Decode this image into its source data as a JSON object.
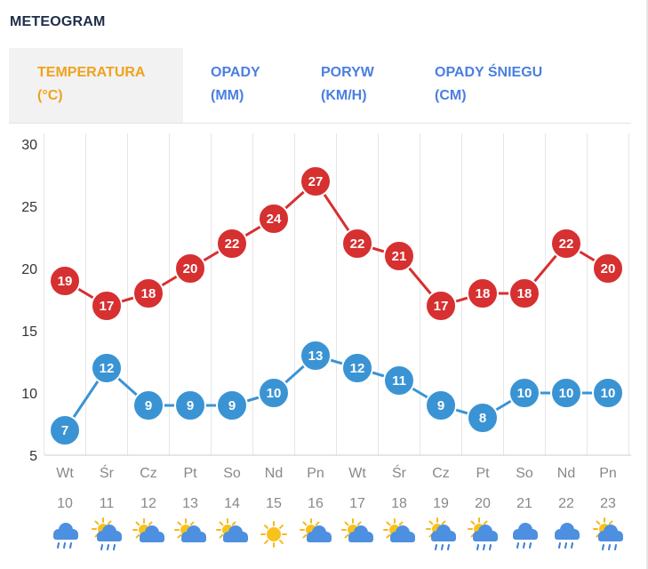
{
  "title": "METEOGRAM",
  "tabs": [
    {
      "line1": "TEMPERATURA",
      "line2": "(°C)",
      "active": true
    },
    {
      "line1": "OPADY",
      "line2": "(MM)",
      "active": false
    },
    {
      "line1": "PORYW",
      "line2": "(KM/H)",
      "active": false
    },
    {
      "line1": "OPADY ŚNIEGU",
      "line2": "(CM)",
      "active": false
    }
  ],
  "chart_data": {
    "type": "line",
    "categories": [
      "Wt",
      "Śr",
      "Cz",
      "Pt",
      "So",
      "Nd",
      "Pn",
      "Wt",
      "Śr",
      "Cz",
      "Pt",
      "So",
      "Nd",
      "Pn"
    ],
    "dates": [
      "10",
      "11",
      "12",
      "13",
      "14",
      "15",
      "16",
      "17",
      "18",
      "19",
      "20",
      "21",
      "22",
      "23"
    ],
    "weather_icons": [
      "rain-cloud-icon",
      "sun-cloud-rain-icon",
      "sun-cloud-icon",
      "sun-cloud-icon",
      "sun-cloud-icon",
      "sun-icon",
      "sun-cloud-icon",
      "sun-cloud-icon",
      "sun-cloud-icon",
      "sun-cloud-rain-icon",
      "sun-cloud-rain-icon",
      "rain-cloud-icon",
      "rain-cloud-icon",
      "sun-cloud-rain-icon"
    ],
    "series": [
      {
        "values": [
          19,
          17,
          18,
          20,
          22,
          24,
          27,
          22,
          21,
          17,
          18,
          18,
          22,
          20
        ],
        "color": "#d63031"
      },
      {
        "values": [
          7,
          12,
          9,
          9,
          9,
          10,
          13,
          12,
          11,
          9,
          8,
          10,
          10,
          10
        ],
        "color": "#3a94d4"
      }
    ],
    "ylim": [
      5,
      30
    ],
    "yticks": [
      5,
      10,
      15,
      20,
      25,
      30
    ],
    "grid": true
  }
}
